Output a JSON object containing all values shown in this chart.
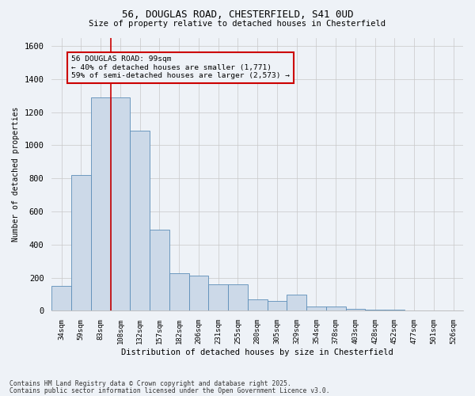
{
  "title1": "56, DOUGLAS ROAD, CHESTERFIELD, S41 0UD",
  "title2": "Size of property relative to detached houses in Chesterfield",
  "xlabel": "Distribution of detached houses by size in Chesterfield",
  "ylabel": "Number of detached properties",
  "bins": [
    "34sqm",
    "59sqm",
    "83sqm",
    "108sqm",
    "132sqm",
    "157sqm",
    "182sqm",
    "206sqm",
    "231sqm",
    "255sqm",
    "280sqm",
    "305sqm",
    "329sqm",
    "354sqm",
    "378sqm",
    "403sqm",
    "428sqm",
    "452sqm",
    "477sqm",
    "501sqm",
    "526sqm"
  ],
  "values": [
    150,
    820,
    1290,
    1290,
    1090,
    490,
    225,
    215,
    160,
    160,
    70,
    60,
    100,
    28,
    28,
    14,
    6,
    5,
    4,
    3,
    3
  ],
  "bar_color": "#ccd9e8",
  "bar_edge_color": "#5b8db8",
  "grid_color": "#c8c8c8",
  "vline_x_index": 2,
  "vline_color": "#cc0000",
  "annotation_text": "56 DOUGLAS ROAD: 99sqm\n← 40% of detached houses are smaller (1,771)\n59% of semi-detached houses are larger (2,573) →",
  "annotation_box_color": "#cc0000",
  "ylim": [
    0,
    1650
  ],
  "yticks": [
    0,
    200,
    400,
    600,
    800,
    1000,
    1200,
    1400,
    1600
  ],
  "footer1": "Contains HM Land Registry data © Crown copyright and database right 2025.",
  "footer2": "Contains public sector information licensed under the Open Government Licence v3.0.",
  "bg_color": "#eef2f7"
}
